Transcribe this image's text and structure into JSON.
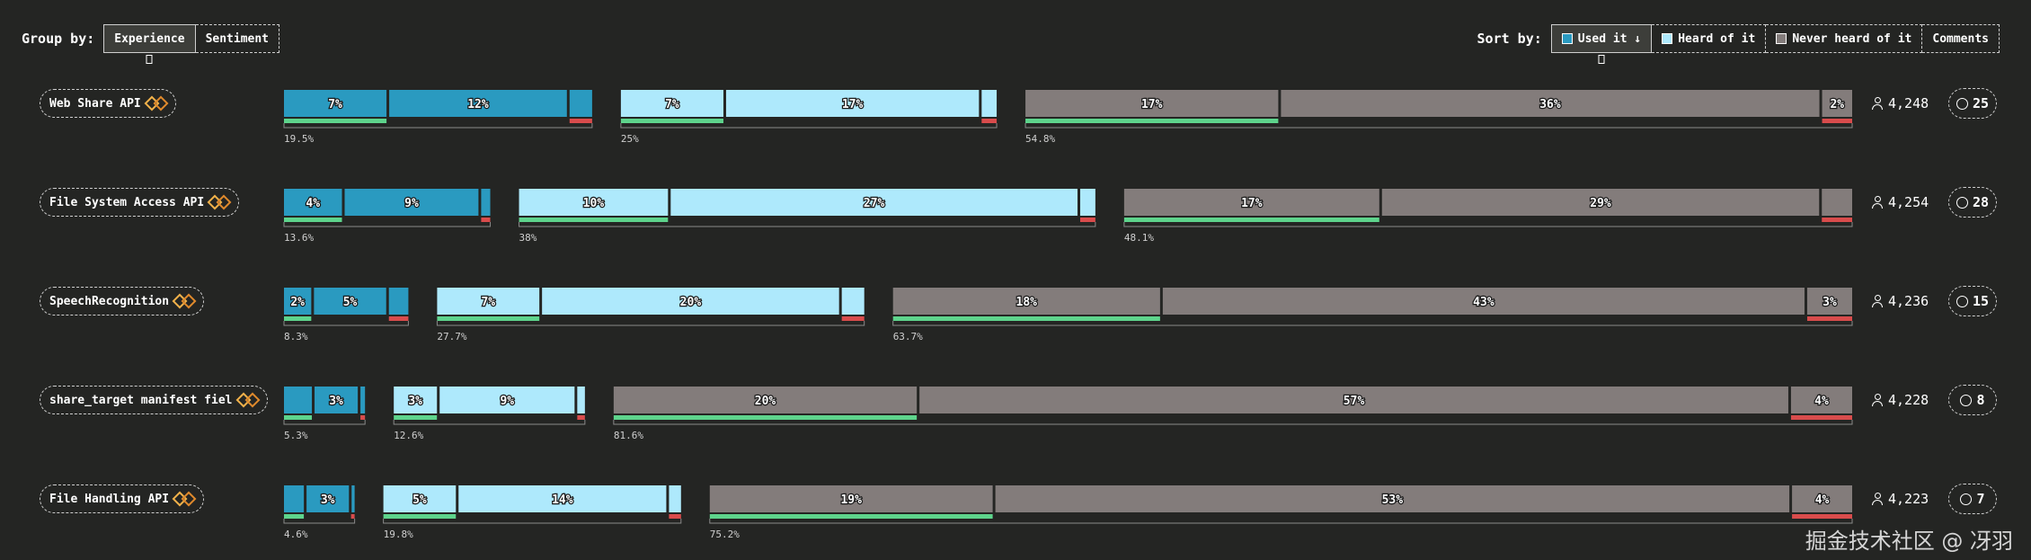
{
  "header": {
    "group_by_label": "Group by:",
    "group_options": [
      "Experience",
      "Sentiment"
    ],
    "group_active": "Experience",
    "sort_by_label": "Sort by:",
    "sort_options": [
      {
        "label": "Used it ↓",
        "swatch": "#2a9ac0",
        "active": true
      },
      {
        "label": "Heard of it",
        "swatch": "#aee9fc",
        "active": false
      },
      {
        "label": "Never heard of it",
        "swatch": "#837c7b",
        "active": false
      },
      {
        "label": "Comments",
        "swatch": "",
        "active": false
      }
    ]
  },
  "colors": {
    "used": "#2a9ac0",
    "heard": "#aee9fc",
    "never": "#837c7b",
    "positive": "#5ed48c",
    "negative": "#d94c4c",
    "background": "#242523"
  },
  "chart_data": {
    "type": "bar",
    "groups": [
      "Used it",
      "Heard of it",
      "Never heard of it"
    ],
    "rows": [
      {
        "feature": "Web Share API",
        "respondents": "4,248",
        "comments": "25",
        "groups": [
          {
            "total": "19.5%",
            "segments": [
              {
                "value": 7,
                "label": "7%"
              },
              {
                "value": 12,
                "label": "12%"
              },
              {
                "value": 1.5,
                "label": ""
              }
            ],
            "positive": 7,
            "negative": 1.5
          },
          {
            "total": "25%",
            "segments": [
              {
                "value": 7,
                "label": "7%"
              },
              {
                "value": 17,
                "label": "17%"
              },
              {
                "value": 1,
                "label": ""
              }
            ],
            "positive": 7,
            "negative": 1
          },
          {
            "total": "54.8%",
            "segments": [
              {
                "value": 17,
                "label": "17%"
              },
              {
                "value": 36,
                "label": "36%"
              },
              {
                "value": 2,
                "label": "2%"
              }
            ],
            "positive": 17,
            "negative": 2
          }
        ]
      },
      {
        "feature": "File System Access API",
        "respondents": "4,254",
        "comments": "28",
        "groups": [
          {
            "total": "13.6%",
            "segments": [
              {
                "value": 4,
                "label": "4%"
              },
              {
                "value": 9,
                "label": "9%"
              },
              {
                "value": 0.6,
                "label": ""
              }
            ],
            "positive": 4,
            "negative": 0.6
          },
          {
            "total": "38%",
            "segments": [
              {
                "value": 10,
                "label": "10%"
              },
              {
                "value": 27,
                "label": "27%"
              },
              {
                "value": 1,
                "label": ""
              }
            ],
            "positive": 10,
            "negative": 1
          },
          {
            "total": "48.1%",
            "segments": [
              {
                "value": 17,
                "label": "17%"
              },
              {
                "value": 29,
                "label": "29%"
              },
              {
                "value": 2,
                "label": ""
              }
            ],
            "positive": 17,
            "negative": 2
          }
        ]
      },
      {
        "feature": "SpeechRecognition",
        "respondents": "4,236",
        "comments": "15",
        "groups": [
          {
            "total": "8.3%",
            "segments": [
              {
                "value": 2,
                "label": "2%"
              },
              {
                "value": 5,
                "label": "5%"
              },
              {
                "value": 1.3,
                "label": ""
              }
            ],
            "positive": 2,
            "negative": 1.3
          },
          {
            "total": "27.7%",
            "segments": [
              {
                "value": 7,
                "label": "7%"
              },
              {
                "value": 20,
                "label": "20%"
              },
              {
                "value": 1.5,
                "label": ""
              }
            ],
            "positive": 7,
            "negative": 1.5
          },
          {
            "total": "63.7%",
            "segments": [
              {
                "value": 18,
                "label": "18%"
              },
              {
                "value": 43,
                "label": "43%"
              },
              {
                "value": 3,
                "label": "3%"
              }
            ],
            "positive": 18,
            "negative": 3
          }
        ]
      },
      {
        "feature": "share_target manifest fiel",
        "respondents": "4,228",
        "comments": "8",
        "groups": [
          {
            "total": "5.3%",
            "segments": [
              {
                "value": 2,
                "label": ""
              },
              {
                "value": 3,
                "label": "3%"
              },
              {
                "value": 0.3,
                "label": ""
              }
            ],
            "positive": 2,
            "negative": 0.3
          },
          {
            "total": "12.6%",
            "segments": [
              {
                "value": 3,
                "label": "3%"
              },
              {
                "value": 9,
                "label": "9%"
              },
              {
                "value": 0.5,
                "label": ""
              }
            ],
            "positive": 3,
            "negative": 0.5
          },
          {
            "total": "81.6%",
            "segments": [
              {
                "value": 20,
                "label": "20%"
              },
              {
                "value": 57,
                "label": "57%"
              },
              {
                "value": 4,
                "label": "4%"
              }
            ],
            "positive": 20,
            "negative": 4
          }
        ]
      },
      {
        "feature": "File Handling API",
        "respondents": "4,223",
        "comments": "7",
        "groups": [
          {
            "total": "4.6%",
            "segments": [
              {
                "value": 1.5,
                "label": ""
              },
              {
                "value": 3,
                "label": "3%"
              },
              {
                "value": 0.2,
                "label": ""
              }
            ],
            "positive": 1.5,
            "negative": 0.2
          },
          {
            "total": "19.8%",
            "segments": [
              {
                "value": 5,
                "label": "5%"
              },
              {
                "value": 14,
                "label": "14%"
              },
              {
                "value": 0.8,
                "label": ""
              }
            ],
            "positive": 5,
            "negative": 0.8
          },
          {
            "total": "75.2%",
            "segments": [
              {
                "value": 19,
                "label": "19%"
              },
              {
                "value": 53,
                "label": "53%"
              },
              {
                "value": 4,
                "label": "4%"
              }
            ],
            "positive": 19,
            "negative": 4
          }
        ]
      }
    ]
  },
  "watermark": "掘金技术社区 @ 冴羽"
}
